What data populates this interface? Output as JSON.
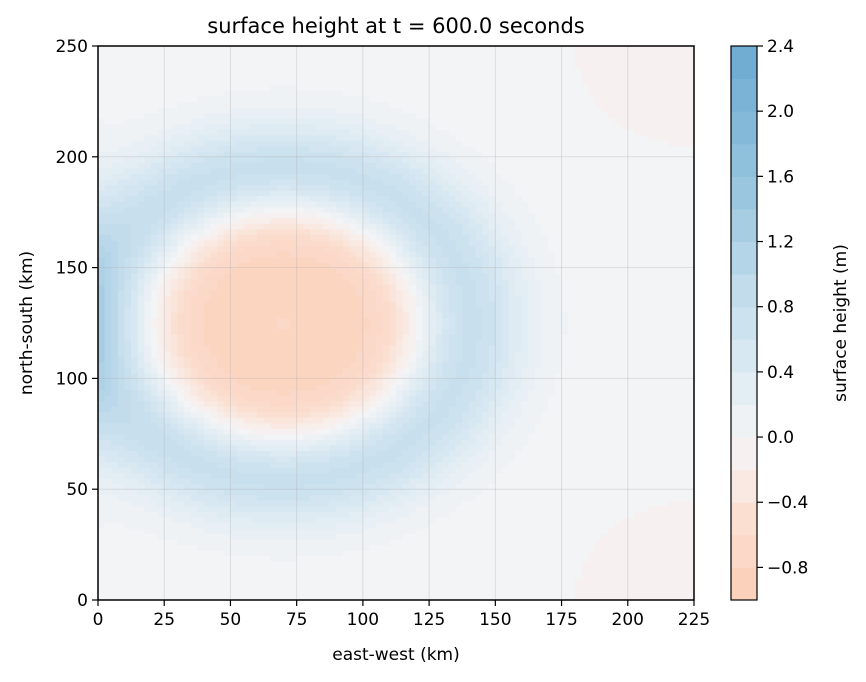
{
  "chart_data": {
    "type": "heatmap",
    "title": "surface height at t = 600.0 seconds",
    "xlabel": "east-west (km)",
    "ylabel": "north-south (km)",
    "xlim": [
      0,
      225
    ],
    "ylim": [
      0,
      250
    ],
    "xticks": [
      0,
      25,
      50,
      75,
      100,
      125,
      150,
      175,
      200,
      225
    ],
    "yticks": [
      0,
      50,
      100,
      150,
      200,
      250
    ],
    "grid": true,
    "colorbar": {
      "label": "surface height (m)",
      "range": [
        -1.0,
        2.4
      ],
      "ticks": [
        -0.8,
        -0.4,
        0.0,
        0.4,
        0.8,
        1.2,
        1.6,
        2.0,
        2.4
      ],
      "tick_labels": [
        "−0.8",
        "−0.4",
        "0.0",
        "0.4",
        "0.8",
        "1.2",
        "1.6",
        "2.0",
        "2.4"
      ],
      "colormap": "RdBu (diverging, centered at 0)"
    },
    "field": {
      "description": "ring-shaped wave centered near (70, 125) km",
      "center": [
        70,
        125
      ],
      "central_peak_height": -0.5,
      "depression_height": -0.8,
      "ring_crest_height": 0.9,
      "ring_radius_km": 68,
      "left_edge_height": 1.2,
      "corner_height": -0.3
    }
  }
}
